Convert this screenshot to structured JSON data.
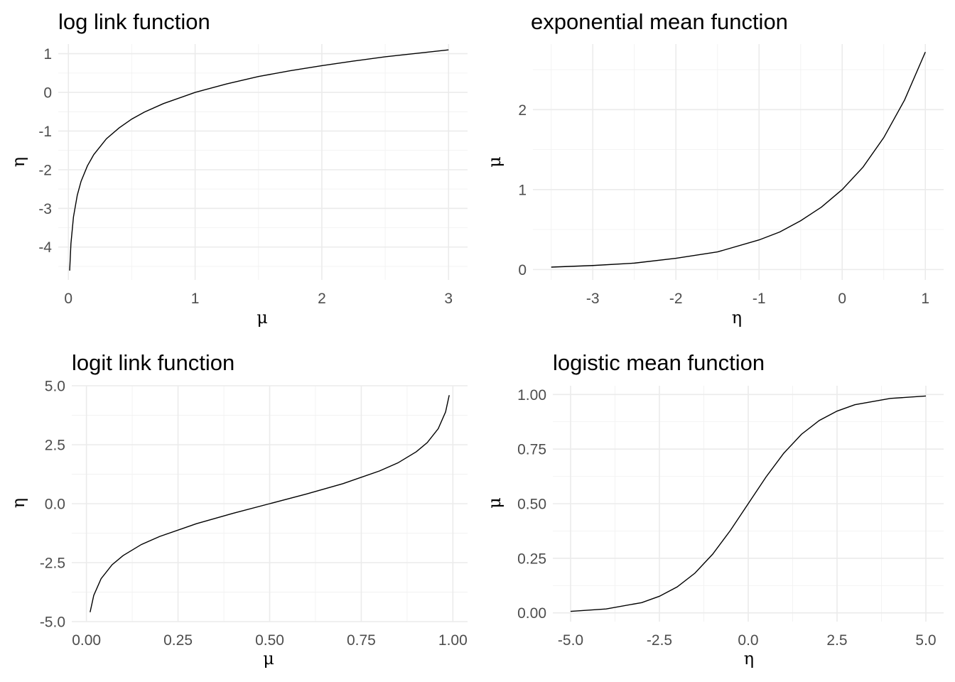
{
  "chart_data": [
    {
      "type": "line",
      "title": "log link function",
      "xlabel": "μ",
      "ylabel": "η",
      "xlim": [
        -0.08,
        3.15
      ],
      "ylim": [
        -4.85,
        1.25
      ],
      "x_ticks": [
        0,
        1,
        2,
        3
      ],
      "x_tick_labels": [
        "0",
        "1",
        "2",
        "3"
      ],
      "y_ticks": [
        -4,
        -3,
        -2,
        -1,
        0,
        1
      ],
      "y_tick_labels": [
        "-4",
        "-3",
        "-2",
        "-1",
        "0",
        "1"
      ],
      "grid": true,
      "series": [
        {
          "x": [
            0.01,
            0.02,
            0.04,
            0.07,
            0.1,
            0.15,
            0.2,
            0.3,
            0.4,
            0.5,
            0.6,
            0.75,
            1.0,
            1.25,
            1.5,
            1.75,
            2.0,
            2.25,
            2.5,
            2.75,
            3.0
          ],
          "y": [
            -4.61,
            -3.91,
            -3.22,
            -2.66,
            -2.3,
            -1.9,
            -1.61,
            -1.2,
            -0.92,
            -0.69,
            -0.51,
            -0.29,
            0.0,
            0.22,
            0.41,
            0.56,
            0.69,
            0.81,
            0.92,
            1.01,
            1.1
          ]
        }
      ]
    },
    {
      "type": "line",
      "title": "exponential mean function",
      "xlabel": "η",
      "ylabel": "μ",
      "xlim": [
        -3.72,
        1.22
      ],
      "ylim": [
        -0.13,
        2.82
      ],
      "x_ticks": [
        -3,
        -2,
        -1,
        0,
        1
      ],
      "x_tick_labels": [
        "-3",
        "-2",
        "-1",
        "0",
        "1"
      ],
      "y_ticks": [
        0,
        1,
        2
      ],
      "y_tick_labels": [
        "0",
        "1",
        "2"
      ],
      "grid": true,
      "series": [
        {
          "x": [
            -3.5,
            -3.0,
            -2.5,
            -2.0,
            -1.5,
            -1.0,
            -0.75,
            -0.5,
            -0.25,
            0.0,
            0.25,
            0.5,
            0.75,
            1.0
          ],
          "y": [
            0.03,
            0.05,
            0.08,
            0.14,
            0.22,
            0.37,
            0.47,
            0.61,
            0.78,
            1.0,
            1.28,
            1.65,
            2.12,
            2.72
          ]
        }
      ]
    },
    {
      "type": "line",
      "title": "logit link function",
      "xlabel": "μ",
      "ylabel": "η",
      "xlim": [
        -0.04,
        1.04
      ],
      "ylim": [
        -5.0,
        5.0
      ],
      "x_ticks": [
        0,
        0.25,
        0.5,
        0.75,
        1.0
      ],
      "x_tick_labels": [
        "0.00",
        "0.25",
        "0.50",
        "0.75",
        "1.00"
      ],
      "y_ticks": [
        -5.0,
        -2.5,
        0.0,
        2.5,
        5.0
      ],
      "y_tick_labels": [
        "-5.0",
        "-2.5",
        "0.0",
        "2.5",
        "5.0"
      ],
      "grid": true,
      "series": [
        {
          "x": [
            0.01,
            0.02,
            0.04,
            0.07,
            0.1,
            0.15,
            0.2,
            0.3,
            0.4,
            0.5,
            0.6,
            0.7,
            0.8,
            0.85,
            0.9,
            0.93,
            0.96,
            0.98,
            0.99
          ],
          "y": [
            -4.6,
            -3.89,
            -3.18,
            -2.59,
            -2.2,
            -1.73,
            -1.39,
            -0.85,
            -0.41,
            0.0,
            0.41,
            0.85,
            1.39,
            1.73,
            2.2,
            2.59,
            3.18,
            3.89,
            4.6
          ]
        }
      ]
    },
    {
      "type": "line",
      "title": "logistic mean function",
      "xlabel": "η",
      "ylabel": "μ",
      "xlim": [
        -5.5,
        5.5
      ],
      "ylim": [
        -0.04,
        1.04
      ],
      "x_ticks": [
        -5.0,
        -2.5,
        0.0,
        2.5,
        5.0
      ],
      "x_tick_labels": [
        "-5.0",
        "-2.5",
        "0.0",
        "2.5",
        "5.0"
      ],
      "y_ticks": [
        0.0,
        0.25,
        0.5,
        0.75,
        1.0
      ],
      "y_tick_labels": [
        "0.00",
        "0.25",
        "0.50",
        "0.75",
        "1.00"
      ],
      "grid": true,
      "series": [
        {
          "x": [
            -5.0,
            -4.0,
            -3.0,
            -2.5,
            -2.0,
            -1.5,
            -1.0,
            -0.5,
            0.0,
            0.5,
            1.0,
            1.5,
            2.0,
            2.5,
            3.0,
            4.0,
            5.0
          ],
          "y": [
            0.007,
            0.018,
            0.047,
            0.076,
            0.119,
            0.182,
            0.269,
            0.378,
            0.5,
            0.622,
            0.731,
            0.818,
            0.881,
            0.924,
            0.953,
            0.982,
            0.993
          ]
        }
      ]
    }
  ]
}
